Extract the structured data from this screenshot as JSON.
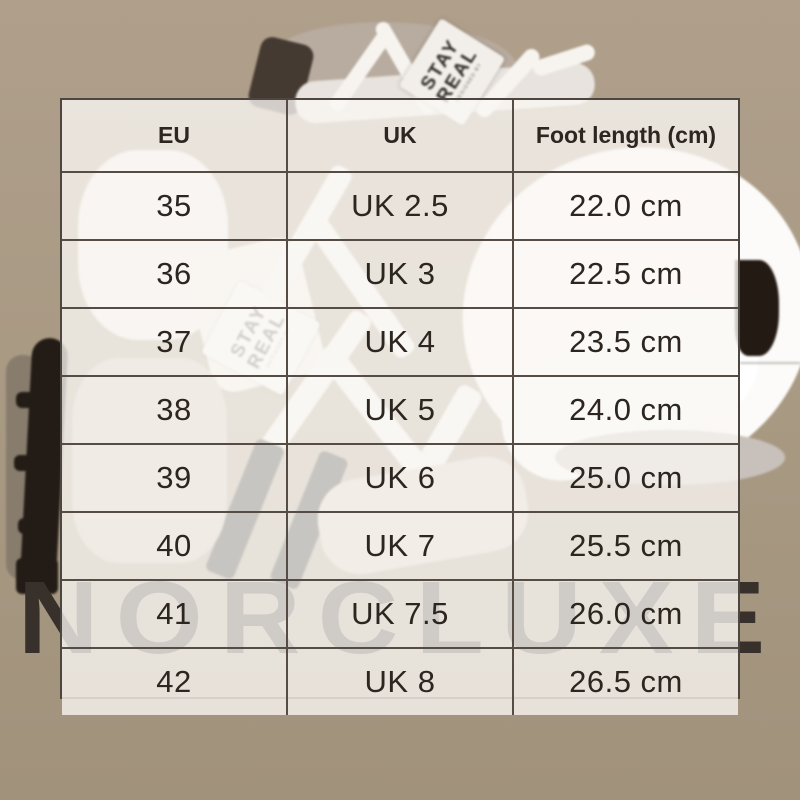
{
  "watermark": "NORCLUXE",
  "shoe_tag": {
    "line1": "STAY",
    "line2": "REAL",
    "sub": "DESIGNED BY"
  },
  "colors": {
    "background_beige": "#a99a84",
    "table_border": "#4d4640",
    "cell_background": "#f7f4f0",
    "table_text": "#2d2620",
    "watermark_dark": "#38302a",
    "shoe_sole_dark": "#241c15"
  },
  "chart_data": {
    "type": "table",
    "title": "",
    "columns": [
      "EU",
      "UK",
      "Foot length (cm)"
    ],
    "rows": [
      [
        "35",
        "UK 2.5",
        "22.0 cm"
      ],
      [
        "36",
        "UK 3",
        "22.5 cm"
      ],
      [
        "37",
        "UK 4",
        "23.5 cm"
      ],
      [
        "38",
        "UK 5",
        "24.0 cm"
      ],
      [
        "39",
        "UK 6",
        "25.0 cm"
      ],
      [
        "40",
        "UK 7",
        "25.5 cm"
      ],
      [
        "41",
        "UK 7.5",
        "26.0 cm"
      ],
      [
        "42",
        "UK 8",
        "26.5 cm"
      ]
    ],
    "eu_sizes": [
      35,
      36,
      37,
      38,
      39,
      40,
      41,
      42
    ],
    "uk_sizes": [
      2.5,
      3,
      4,
      5,
      6,
      7,
      7.5,
      8
    ],
    "foot_length_cm": [
      22.0,
      22.5,
      23.5,
      24.0,
      25.0,
      25.5,
      26.0,
      26.5
    ],
    "layout": {
      "grid": true,
      "legend": "none"
    }
  }
}
